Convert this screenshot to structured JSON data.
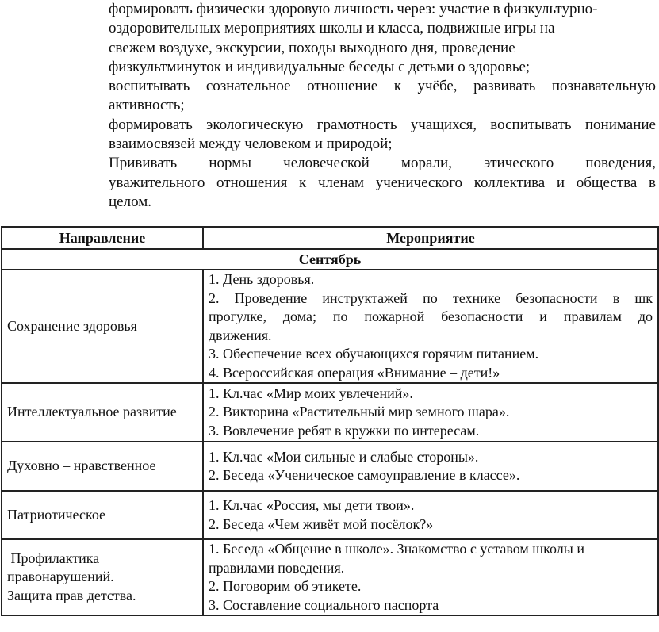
{
  "intro_lines": [
    {
      "text": "формировать физически здоровую личность через: участие в физкультурно-",
      "justify": false
    },
    {
      "text": "оздоровительных мероприятиях школы и класса, подвижные игры на",
      "justify": false
    },
    {
      "text": "свежем воздухе, экскурсии, походы выходного дня, проведение",
      "justify": false
    },
    {
      "text": "физкультминуток и индивидуальные беседы с детьми о здоровье;",
      "justify": false
    },
    {
      "text": "воспитывать сознательное отношение к учёбе, развивать познавательную",
      "justify": true
    },
    {
      "text": "активность;",
      "justify": false
    },
    {
      "text": "формировать экологическую грамотность учащихся, воспитывать понимание",
      "justify": true
    },
    {
      "text": "взаимосвязей между человеком и природой;",
      "justify": false
    },
    {
      "text": "Прививать нормы человеческой морали, этического поведения,",
      "justify": true
    },
    {
      "text": "уважительного отношения к членам ученического коллектива и общества в",
      "justify": true
    },
    {
      "text": "целом.",
      "justify": false
    }
  ],
  "table": {
    "headers": [
      "Направление",
      "Мероприятие"
    ],
    "month": "Сентябрь",
    "rows": [
      {
        "direction": [
          "Сохранение здоровья"
        ],
        "events": [
          {
            "text": "1. День здоровья.",
            "justify": false
          },
          {
            "text": "2. Проведение инструктажей по технике безопасности в шк",
            "justify": true
          },
          {
            "text": "прогулке, дома; по пожарной безопасности и правилам до",
            "justify": true
          },
          {
            "text": "движения.",
            "justify": false
          },
          {
            "text": "3. Обеспечение всех обучающихся горячим питанием.",
            "justify": false
          },
          {
            "text": "4. Всероссийская операция «Внимание – дети!»",
            "justify": false
          }
        ]
      },
      {
        "direction": [
          "Интеллектуальное развитие"
        ],
        "events": [
          {
            "text": "1. Кл.час «Мир моих увлечений».",
            "justify": false
          },
          {
            "text": "2. Викторина «Растительный мир земного шара».",
            "justify": false
          },
          {
            "text": "3. Вовлечение ребят в кружки по интересам.",
            "justify": false
          }
        ]
      },
      {
        "direction": [
          "Духовно – нравственное"
        ],
        "events": [
          {
            "text": "1. Кл.час «Мои сильные и слабые стороны».",
            "justify": false
          },
          {
            "text": "2. Беседа «Ученическое самоуправление в классе».",
            "justify": false
          }
        ]
      },
      {
        "direction": [
          "Патриотическое"
        ],
        "events": [
          {
            "text": "1. Кл.час «Россия, мы дети твои».",
            "justify": false
          },
          {
            "text": "2. Беседа «Чем живёт мой посёлок?»",
            "justify": false
          }
        ]
      },
      {
        "direction": [
          " Профилактика",
          "правонарушений.",
          "Защита прав детства."
        ],
        "events": [
          {
            "text": "1. Беседа «Общение в школе». Знакомство с уставом школы и",
            "justify": false
          },
          {
            "text": "правилами поведения.",
            "justify": false
          },
          {
            "text": "2. Поговорим об этикете.",
            "justify": false
          },
          {
            "text": "3. Составление социального паспорта",
            "justify": false
          }
        ]
      }
    ]
  }
}
